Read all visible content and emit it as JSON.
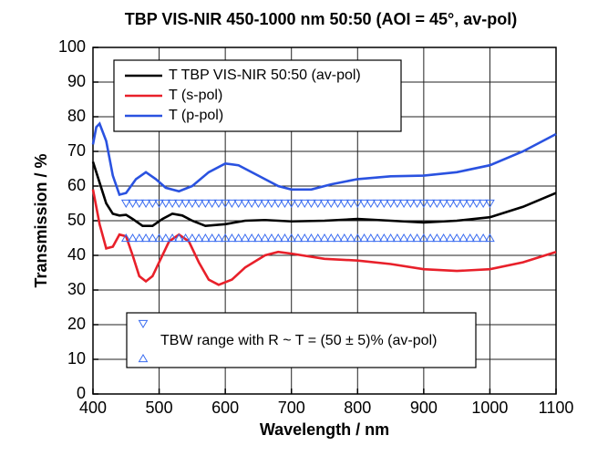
{
  "chart_data": {
    "type": "line",
    "title": "TBP VIS-NIR 450-1000 nm 50:50 (AOI = 45°, av-pol)",
    "x_label": "Wavelength / nm",
    "y_label": "Transmission / %",
    "xlim": [
      400,
      1100
    ],
    "xticks": [
      400,
      500,
      600,
      700,
      800,
      900,
      1000,
      1100
    ],
    "ylim": [
      0,
      100
    ],
    "yticks": [
      0,
      10,
      20,
      30,
      40,
      50,
      60,
      70,
      80,
      90,
      100
    ],
    "grid": true,
    "series": [
      {
        "name": "T TBP VIS-NIR 50:50 (av-pol)",
        "color": "#000000",
        "x": [
          400,
          410,
          420,
          430,
          440,
          450,
          460,
          475,
          490,
          505,
          520,
          535,
          550,
          570,
          600,
          630,
          660,
          700,
          750,
          800,
          850,
          900,
          950,
          1000,
          1050,
          1100
        ],
        "values": [
          67,
          61,
          55,
          52,
          51.5,
          51.7,
          50.5,
          48.5,
          48.5,
          50.5,
          52,
          51.5,
          50,
          48.5,
          49,
          50,
          50.2,
          49.8,
          50,
          50.5,
          50,
          49.5,
          50,
          51,
          54,
          58
        ]
      },
      {
        "name": "T (s-pol)",
        "color": "#e8202a",
        "x": [
          400,
          410,
          420,
          430,
          440,
          450,
          460,
          470,
          480,
          490,
          500,
          515,
          530,
          545,
          560,
          575,
          590,
          610,
          630,
          660,
          680,
          700,
          750,
          800,
          850,
          900,
          950,
          1000,
          1050,
          1100
        ],
        "values": [
          59,
          49,
          42,
          42.5,
          46,
          45.5,
          40,
          34,
          32.5,
          34,
          38,
          44,
          46,
          44,
          38,
          33,
          31.5,
          33,
          36.5,
          40,
          41,
          40.5,
          39,
          38.5,
          37.5,
          36,
          35.5,
          36,
          38,
          41
        ]
      },
      {
        "name": "T (p-pol)",
        "color": "#2a52e0",
        "x": [
          400,
          405,
          410,
          420,
          430,
          440,
          450,
          465,
          480,
          495,
          510,
          530,
          550,
          575,
          600,
          620,
          650,
          680,
          700,
          730,
          760,
          800,
          850,
          900,
          950,
          1000,
          1050,
          1100
        ],
        "values": [
          72,
          77,
          78,
          73,
          63,
          57.5,
          58,
          62,
          64,
          62,
          59.5,
          58.5,
          60,
          64,
          66.5,
          66,
          63,
          60,
          59,
          59,
          60.5,
          62,
          62.8,
          63,
          64,
          66,
          70,
          75
        ]
      },
      {
        "marker": "triangle-down",
        "color": "#3a6cf0",
        "x": [
          450,
          460,
          470,
          480,
          490,
          500,
          510,
          520,
          530,
          540,
          550,
          560,
          570,
          580,
          590,
          600,
          610,
          620,
          630,
          640,
          650,
          660,
          670,
          680,
          690,
          700,
          710,
          720,
          730,
          740,
          750,
          760,
          770,
          780,
          790,
          800,
          810,
          820,
          830,
          840,
          850,
          860,
          870,
          880,
          890,
          900,
          910,
          920,
          930,
          940,
          950,
          960,
          970,
          980,
          990,
          1000
        ],
        "values": [
          55,
          55,
          55,
          55,
          55,
          55,
          55,
          55,
          55,
          55,
          55,
          55,
          55,
          55,
          55,
          55,
          55,
          55,
          55,
          55,
          55,
          55,
          55,
          55,
          55,
          55,
          55,
          55,
          55,
          55,
          55,
          55,
          55,
          55,
          55,
          55,
          55,
          55,
          55,
          55,
          55,
          55,
          55,
          55,
          55,
          55,
          55,
          55,
          55,
          55,
          55,
          55,
          55,
          55,
          55,
          55
        ]
      },
      {
        "marker": "triangle-up",
        "color": "#3a6cf0",
        "x": [
          450,
          460,
          470,
          480,
          490,
          500,
          510,
          520,
          530,
          540,
          550,
          560,
          570,
          580,
          590,
          600,
          610,
          620,
          630,
          640,
          650,
          660,
          670,
          680,
          690,
          700,
          710,
          720,
          730,
          740,
          750,
          760,
          770,
          780,
          790,
          800,
          810,
          820,
          830,
          840,
          850,
          860,
          870,
          880,
          890,
          900,
          910,
          920,
          930,
          940,
          950,
          960,
          970,
          980,
          990,
          1000
        ],
        "values": [
          45,
          45,
          45,
          45,
          45,
          45,
          45,
          45,
          45,
          45,
          45,
          45,
          45,
          45,
          45,
          45,
          45,
          45,
          45,
          45,
          45,
          45,
          45,
          45,
          45,
          45,
          45,
          45,
          45,
          45,
          45,
          45,
          45,
          45,
          45,
          45,
          45,
          45,
          45,
          45,
          45,
          45,
          45,
          45,
          45,
          45,
          45,
          45,
          45,
          45,
          45,
          45,
          45,
          45,
          45,
          45
        ]
      }
    ],
    "range_legend": "TBW range with R ~ T = (50 ± 5)% (av-pol)"
  }
}
